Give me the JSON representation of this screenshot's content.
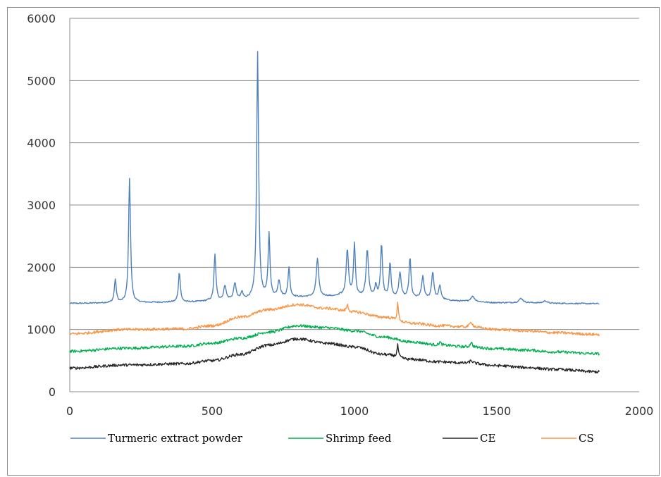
{
  "chart_data": {
    "type": "line",
    "title": "",
    "xlabel": "",
    "ylabel": "",
    "xlim": [
      0,
      2000
    ],
    "ylim": [
      0,
      6000
    ],
    "x_ticks": [
      0,
      500,
      1000,
      1500,
      2000
    ],
    "y_ticks": [
      0,
      1000,
      2000,
      3000,
      4000,
      5000,
      6000
    ],
    "x_tick_labels": [
      "0",
      "500",
      "1000",
      "1500",
      "2000"
    ],
    "y_tick_labels": [
      "0",
      "1000",
      "2000",
      "3000",
      "4000",
      "5000",
      "6000"
    ],
    "grid": "horizontal",
    "legend_position": "bottom",
    "x_range": [
      0,
      1860
    ],
    "series": [
      {
        "name": "Turmeric extract powder",
        "color": "#4f81bd",
        "baseline": [
          [
            0,
            1420
          ],
          [
            200,
            1430
          ],
          [
            400,
            1440
          ],
          [
            500,
            1455
          ],
          [
            600,
            1480
          ],
          [
            700,
            1510
          ],
          [
            800,
            1520
          ],
          [
            900,
            1530
          ],
          [
            1000,
            1520
          ],
          [
            1100,
            1510
          ],
          [
            1200,
            1500
          ],
          [
            1300,
            1470
          ],
          [
            1400,
            1450
          ],
          [
            1500,
            1430
          ],
          [
            1600,
            1430
          ],
          [
            1700,
            1420
          ],
          [
            1860,
            1415
          ]
        ],
        "peaks": [
          [
            160,
            1800,
            4
          ],
          [
            210,
            3430,
            4
          ],
          [
            385,
            1920,
            4
          ],
          [
            485,
            1460,
            4
          ],
          [
            510,
            2200,
            4
          ],
          [
            545,
            1700,
            5
          ],
          [
            580,
            1740,
            5
          ],
          [
            605,
            1590,
            4
          ],
          [
            660,
            5450,
            4
          ],
          [
            700,
            2520,
            4
          ],
          [
            735,
            1780,
            5
          ],
          [
            770,
            1990,
            4
          ],
          [
            870,
            2140,
            5
          ],
          [
            950,
            1560,
            4
          ],
          [
            975,
            2280,
            5
          ],
          [
            1000,
            2360,
            4
          ],
          [
            1045,
            2270,
            5
          ],
          [
            1075,
            1700,
            4
          ],
          [
            1095,
            2360,
            4
          ],
          [
            1125,
            2060,
            4
          ],
          [
            1160,
            1900,
            5
          ],
          [
            1195,
            2150,
            4
          ],
          [
            1240,
            1840,
            5
          ],
          [
            1275,
            1910,
            5
          ],
          [
            1300,
            1690,
            5
          ],
          [
            1415,
            1530,
            8
          ],
          [
            1585,
            1500,
            8
          ],
          [
            1670,
            1460,
            8
          ]
        ]
      },
      {
        "name": "Shrimp feed",
        "color": "#00b050",
        "baseline": [
          [
            0,
            650
          ],
          [
            200,
            700
          ],
          [
            400,
            730
          ],
          [
            500,
            780
          ],
          [
            600,
            860
          ],
          [
            700,
            960
          ],
          [
            800,
            1060
          ],
          [
            900,
            1030
          ],
          [
            1000,
            980
          ],
          [
            1100,
            880
          ],
          [
            1200,
            800
          ],
          [
            1300,
            750
          ],
          [
            1400,
            720
          ],
          [
            1500,
            690
          ],
          [
            1600,
            670
          ],
          [
            1700,
            640
          ],
          [
            1860,
            610
          ]
        ],
        "peaks": [
          [
            1300,
            800,
            4
          ],
          [
            1410,
            800,
            4
          ]
        ]
      },
      {
        "name": "CE",
        "color": "#262626",
        "baseline": [
          [
            0,
            380
          ],
          [
            200,
            430
          ],
          [
            400,
            450
          ],
          [
            500,
            500
          ],
          [
            600,
            600
          ],
          [
            700,
            750
          ],
          [
            800,
            850
          ],
          [
            900,
            780
          ],
          [
            1000,
            720
          ],
          [
            1100,
            600
          ],
          [
            1200,
            520
          ],
          [
            1300,
            480
          ],
          [
            1400,
            460
          ],
          [
            1500,
            420
          ],
          [
            1600,
            390
          ],
          [
            1700,
            360
          ],
          [
            1860,
            320
          ]
        ],
        "peaks": [
          [
            1152,
            750,
            3
          ],
          [
            1410,
            500,
            6
          ]
        ]
      },
      {
        "name": "CS",
        "color": "#f79646",
        "baseline": [
          [
            0,
            930
          ],
          [
            200,
            1000
          ],
          [
            400,
            1010
          ],
          [
            500,
            1060
          ],
          [
            600,
            1200
          ],
          [
            700,
            1320
          ],
          [
            800,
            1400
          ],
          [
            900,
            1340
          ],
          [
            1000,
            1280
          ],
          [
            1100,
            1200
          ],
          [
            1200,
            1100
          ],
          [
            1300,
            1060
          ],
          [
            1400,
            1040
          ],
          [
            1500,
            1000
          ],
          [
            1600,
            980
          ],
          [
            1700,
            950
          ],
          [
            1860,
            920
          ]
        ],
        "peaks": [
          [
            975,
            1400,
            4
          ],
          [
            1152,
            1420,
            3
          ],
          [
            1410,
            1120,
            6
          ]
        ]
      }
    ]
  }
}
